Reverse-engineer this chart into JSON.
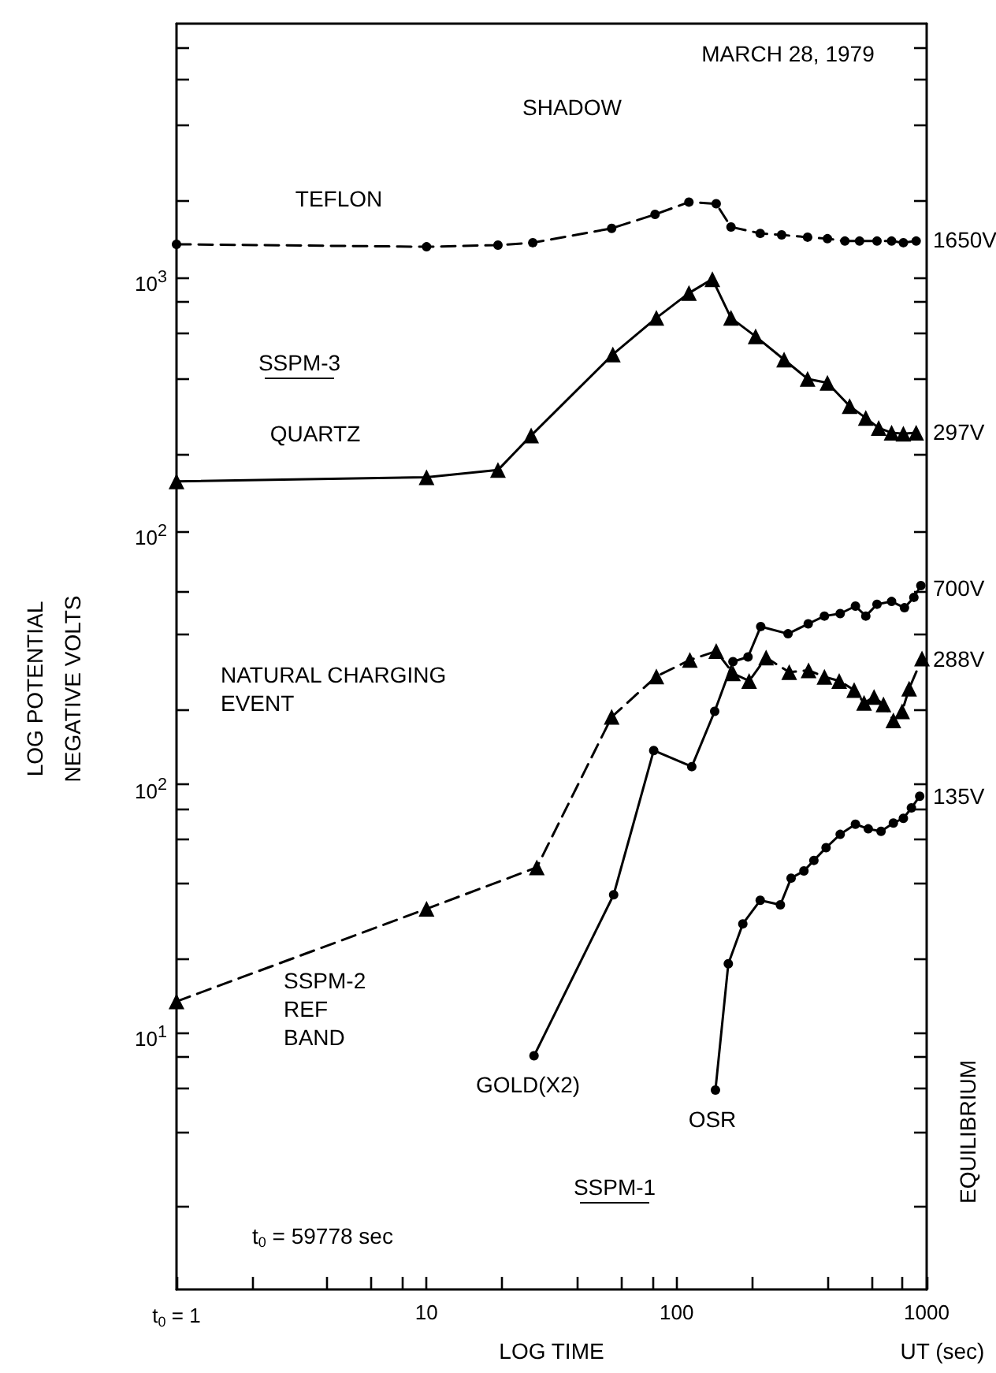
{
  "chart_data": [
    {
      "type": "line",
      "log": "xy",
      "tick_labels": "y",
      "xlim": [
        1,
        1000
      ],
      "ylim": [
        75,
        10000
      ],
      "yticks": [
        {
          "value": 100,
          "label": "10$^{2}$"
        },
        {
          "value": 200,
          "label": null
        },
        {
          "value": 400,
          "label": null
        },
        {
          "value": 600,
          "label": null
        },
        {
          "value": 800,
          "label": null
        },
        {
          "value": 1000,
          "label": "10$^{3}$"
        },
        {
          "value": 2000,
          "label": null
        },
        {
          "value": 4000,
          "label": null
        },
        {
          "value": 6000,
          "label": null
        },
        {
          "value": 8000,
          "label": null
        }
      ],
      "series": [
        {
          "color": "#000000",
          "marker": "circle",
          "line_style": "dashed",
          "x": [
            1,
            10,
            19.3,
            26.6,
            55,
            82,
            112,
            144,
            165,
            216,
            263,
            334,
            401,
            471,
            539,
            633,
            724,
            807,
            908
          ],
          "values": [
            1350,
            1320,
            1340,
            1370,
            1560,
            1770,
            1980,
            1950,
            1580,
            1490,
            1470,
            1440,
            1420,
            1390,
            1390,
            1390,
            1390,
            1370,
            1390
          ]
        },
        {
          "color": "#000000",
          "marker": "triangle",
          "line_style": "solid",
          "x": [
            1,
            10,
            19.3,
            26.2,
            55.6,
            83,
            112,
            139,
            165,
            207,
            269,
            334,
            401,
            492,
            571,
            643,
            724,
            807,
            908
          ],
          "values": [
            157,
            163,
            174,
            238,
            497,
            692,
            867,
            984,
            692,
            585,
            474,
            398,
            384,
            311,
            279,
            255,
            244,
            242,
            244
          ]
        }
      ],
      "annotations": [
        "MARCH 28, 1979",
        "SHADOW",
        "SSPM-3",
        "TEFLON",
        "QUARTZ",
        "1650V",
        "297V"
      ]
    },
    {
      "type": "line",
      "log": "xy",
      "xlim": [
        1,
        1000
      ],
      "ylim": [
        0.93,
        780
      ],
      "xlabel": "LOG TIME",
      "ylabel": "LOG POTENTIAL\nNEGATIVE VOLTS",
      "xticks": [
        {
          "value": 1,
          "label": "t$_{0}$ = 1"
        },
        {
          "value": 2,
          "label": null
        },
        {
          "value": 4,
          "label": null
        },
        {
          "value": 6,
          "label": null
        },
        {
          "value": 8,
          "label": null
        },
        10,
        {
          "value": 20,
          "label": null
        },
        {
          "value": 40,
          "label": null
        },
        {
          "value": 60,
          "label": null
        },
        {
          "value": 80,
          "label": null
        },
        100,
        {
          "value": 200,
          "label": null
        },
        {
          "value": 400,
          "label": null
        },
        {
          "value": 600,
          "label": null
        },
        {
          "value": 800,
          "label": null
        },
        1000
      ],
      "yticks": [
        {
          "value": 2,
          "label": null
        },
        {
          "value": 4,
          "label": null
        },
        {
          "value": 6,
          "label": null
        },
        {
          "value": 8,
          "label": null
        },
        {
          "value": 10,
          "label": "10$^{1}$"
        },
        {
          "value": 20,
          "label": null
        },
        {
          "value": 40,
          "label": null
        },
        {
          "value": 60,
          "label": null
        },
        {
          "value": 80,
          "label": null
        },
        {
          "value": 100,
          "label": "10$^{2}$"
        },
        {
          "value": 200,
          "label": null
        },
        {
          "value": 400,
          "label": null
        },
        {
          "value": 600,
          "label": null
        }
      ],
      "series": [
        {
          "color": "#000000",
          "marker": "triangle",
          "line_style": "dashed",
          "x": [
            1,
            10,
            27.6,
            55,
            83,
            113,
            144,
            168,
            195,
            228,
            282,
            337,
            390,
            447,
            513,
            562,
            616,
            672,
            736,
            798,
            851,
            958
          ],
          "values": [
            13.4,
            31.6,
            46.4,
            187,
            272,
            317,
            344,
            280,
            261,
            324,
            283,
            288,
            271,
            261,
            240,
            213,
            225,
            210,
            181,
            197,
            243,
            321
          ]
        },
        {
          "color": "#000000",
          "marker": "circle",
          "line_style": "solid",
          "x": [
            26.9,
            56,
            81,
            115,
            142,
            168,
            193,
            217,
            279,
            336,
            390,
            451,
            519,
            571,
            633,
            724,
            815,
            889,
            948
          ],
          "values": [
            8.1,
            36,
            137,
            118,
            197,
            312,
            326,
            432,
            404,
            443,
            476,
            487,
            522,
            476,
            531,
            545,
            514,
            566,
            631
          ]
        },
        {
          "color": "#000000",
          "marker": "circle",
          "line_style": "solid",
          "x": [
            143,
            161,
            184,
            216,
            260,
            287,
            323,
            354,
            396,
            451,
            519,
            584,
            657,
            736,
            807,
            869,
            938
          ],
          "values": [
            5.9,
            19,
            27.5,
            34.2,
            32.8,
            42,
            44.9,
            49.5,
            55.7,
            63,
            69.2,
            66.3,
            64.8,
            70,
            73.1,
            80.5,
            89.7
          ]
        }
      ],
      "annotations": [
        "NATURAL CHARGING\nEVENT",
        "SSPM-1",
        "t$_{0}$ = 59778 sec",
        "EQUILIBRIUM",
        "UT (sec)",
        "SSPM-2\nREF\nBAND",
        "GOLD(X2)",
        "OSR",
        "700V",
        "288V",
        "135V"
      ]
    }
  ]
}
